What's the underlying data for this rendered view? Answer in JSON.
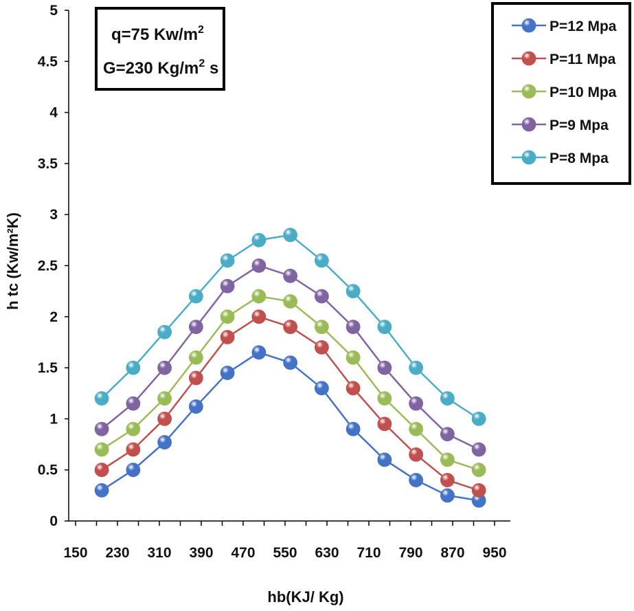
{
  "chart_data": {
    "type": "line",
    "title": "",
    "xlabel": "hb(KJ/ Kg)",
    "ylabel": "h tc (Kw/m²K)",
    "xlim": [
      150,
      990
    ],
    "ylim": [
      0,
      5
    ],
    "x_ticks": [
      "150",
      "230",
      "310",
      "390",
      "470",
      "550",
      "630",
      "710",
      "790",
      "870",
      "950"
    ],
    "y_ticks": [
      "0",
      "0.5",
      "1",
      "1.5",
      "2",
      "2.5",
      "3",
      "3.5",
      "4",
      "4.5",
      "5"
    ],
    "x": [
      200,
      260,
      320,
      380,
      440,
      500,
      560,
      620,
      680,
      740,
      800,
      860,
      920
    ],
    "series": [
      {
        "name": "P=12 Mpa",
        "color": "#4472C4",
        "values": [
          0.3,
          0.5,
          0.77,
          1.12,
          1.45,
          1.65,
          1.55,
          1.3,
          0.9,
          0.6,
          0.4,
          0.25,
          0.2
        ]
      },
      {
        "name": "P=11 Mpa",
        "color": "#C0504D",
        "values": [
          0.5,
          0.7,
          1.0,
          1.4,
          1.8,
          2.0,
          1.9,
          1.7,
          1.3,
          0.95,
          0.65,
          0.4,
          0.3
        ]
      },
      {
        "name": "P=10 Mpa",
        "color": "#9BBB59",
        "values": [
          0.7,
          0.9,
          1.2,
          1.6,
          2.0,
          2.2,
          2.15,
          1.9,
          1.6,
          1.2,
          0.9,
          0.6,
          0.5
        ]
      },
      {
        "name": "P=9 Mpa",
        "color": "#8064A2",
        "values": [
          0.9,
          1.15,
          1.5,
          1.9,
          2.3,
          2.5,
          2.4,
          2.2,
          1.9,
          1.5,
          1.15,
          0.85,
          0.7
        ]
      },
      {
        "name": "P=8 Mpa",
        "color": "#4BACC6",
        "values": [
          1.2,
          1.5,
          1.85,
          2.2,
          2.55,
          2.75,
          2.8,
          2.55,
          2.25,
          1.9,
          1.5,
          1.2,
          1.0
        ]
      }
    ],
    "annotation": {
      "line1_prefix": "q=75 Kw/m",
      "line1_sup": "2",
      "line2_prefix": "G=230 Kg/m",
      "line2_sup": "2",
      "line2_suffix": " s"
    },
    "legend_position": "top-right",
    "grid": false
  }
}
